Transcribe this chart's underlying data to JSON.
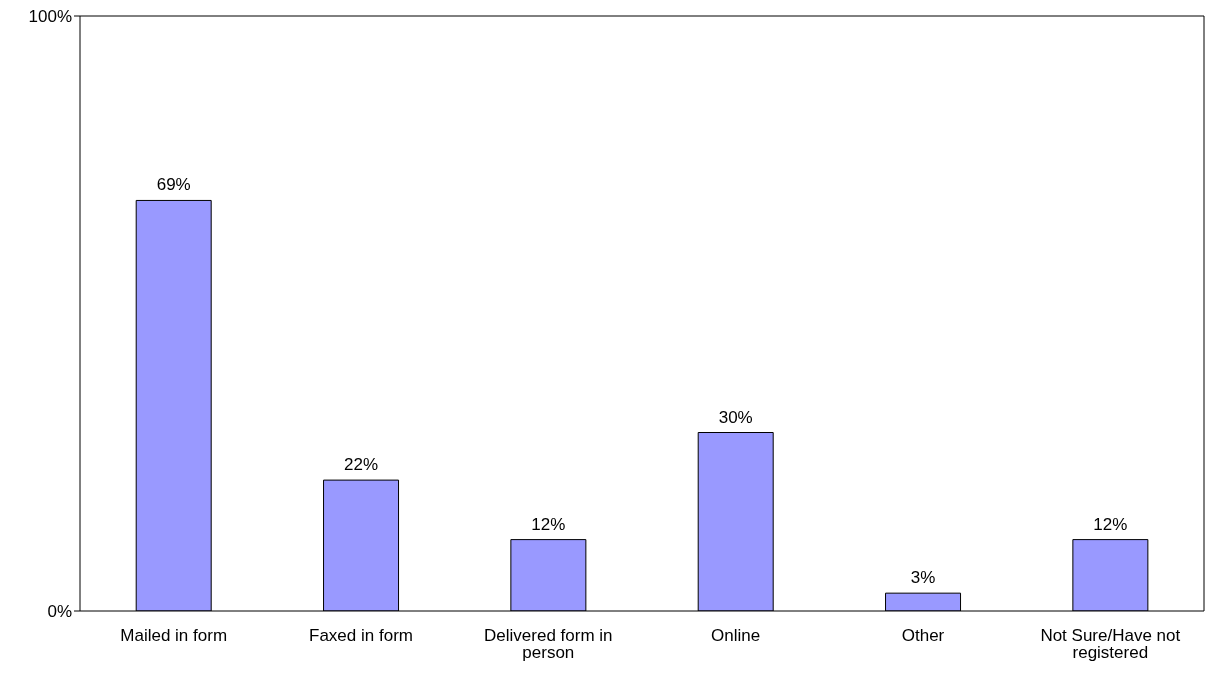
{
  "chart_data": {
    "type": "bar",
    "categories": [
      "Mailed in form",
      "Faxed in form",
      "Delivered form in person",
      "Online",
      "Other",
      "Not Sure/Have not registered"
    ],
    "values": [
      69,
      22,
      12,
      30,
      3,
      12
    ],
    "value_labels": [
      "69%",
      "22%",
      "12%",
      "30%",
      "3%",
      "12%"
    ],
    "color": "#9999ff",
    "ylim": [
      0,
      100
    ],
    "yticks": [
      {
        "value": 0,
        "label": "0%"
      },
      {
        "value": 100,
        "label": "100%"
      }
    ],
    "grid": false
  }
}
